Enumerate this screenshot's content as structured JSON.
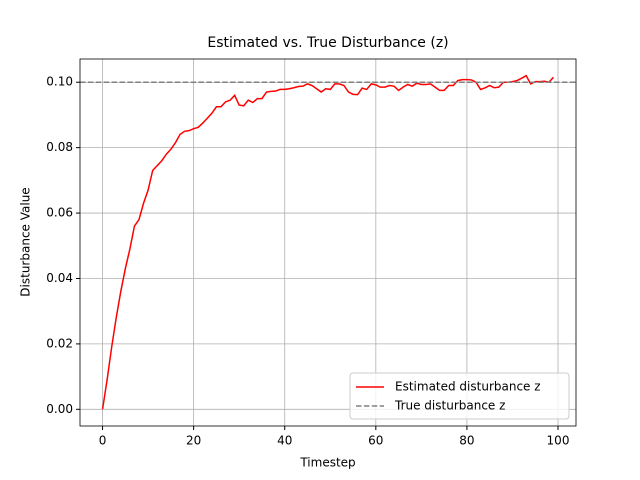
{
  "chart_data": {
    "type": "line",
    "title": "Estimated vs. True Disturbance (z)",
    "xlabel": "Timestep",
    "ylabel": "Disturbance Value",
    "x": [
      0,
      1,
      2,
      3,
      4,
      5,
      6,
      7,
      8,
      9,
      10,
      11,
      12,
      13,
      14,
      15,
      16,
      17,
      18,
      19,
      20,
      21,
      22,
      23,
      24,
      25,
      26,
      27,
      28,
      29,
      30,
      31,
      32,
      33,
      34,
      35,
      36,
      37,
      38,
      39,
      40,
      41,
      42,
      43,
      44,
      45,
      46,
      47,
      48,
      49,
      50,
      51,
      52,
      53,
      54,
      55,
      56,
      57,
      58,
      59,
      60,
      61,
      62,
      63,
      64,
      65,
      66,
      67,
      68,
      69,
      70,
      71,
      72,
      73,
      74,
      75,
      76,
      77,
      78,
      79,
      80,
      81,
      82,
      83,
      84,
      85,
      86,
      87,
      88,
      89,
      90,
      91,
      92,
      93,
      94,
      95,
      96,
      97,
      98,
      99
    ],
    "series": [
      {
        "name": "Estimated disturbance z",
        "color": "#ff0000",
        "style": "solid",
        "values": [
          0,
          0.009,
          0.019,
          0.028,
          0.036,
          0.043,
          0.049,
          0.056,
          0.058,
          0.063,
          0.067,
          0.073,
          0.0745,
          0.076,
          0.078,
          0.0795,
          0.0815,
          0.084,
          0.085,
          0.0852,
          0.0858,
          0.0862,
          0.0875,
          0.089,
          0.0905,
          0.0925,
          0.0925,
          0.094,
          0.0945,
          0.096,
          0.093,
          0.0928,
          0.0945,
          0.0938,
          0.095,
          0.095,
          0.097,
          0.0972,
          0.0973,
          0.0978,
          0.0978,
          0.098,
          0.0983,
          0.0987,
          0.0988,
          0.0995,
          0.099,
          0.098,
          0.097,
          0.098,
          0.0978,
          0.0995,
          0.0995,
          0.099,
          0.097,
          0.0963,
          0.0962,
          0.0982,
          0.0978,
          0.0995,
          0.0992,
          0.0985,
          0.0985,
          0.099,
          0.0988,
          0.0975,
          0.0985,
          0.0993,
          0.0988,
          0.0997,
          0.0993,
          0.0993,
          0.0995,
          0.0985,
          0.0975,
          0.0975,
          0.099,
          0.099,
          0.1005,
          0.1008,
          0.1008,
          0.1007,
          0.1,
          0.0978,
          0.0983,
          0.099,
          0.0983,
          0.0985,
          0.1,
          0.1,
          0.1002,
          0.1005,
          0.1012,
          0.102,
          0.0995,
          0.1002,
          0.1002,
          0.1003,
          0.1,
          0.1015
        ]
      },
      {
        "name": "True disturbance z",
        "color": "#808080",
        "style": "dashed",
        "hline": 0.1
      }
    ],
    "xlim": [
      -4.95,
      103.95
    ],
    "ylim": [
      -0.0051,
      0.1071
    ],
    "xticks": [
      0,
      20,
      40,
      60,
      80,
      100
    ],
    "yticks": [
      {
        "value": 0,
        "label": "0.00"
      },
      {
        "value": 0.02,
        "label": "0.02"
      },
      {
        "value": 0.04,
        "label": "0.04"
      },
      {
        "value": 0.06,
        "label": "0.06"
      },
      {
        "value": 0.08,
        "label": "0.08"
      },
      {
        "value": 0.1,
        "label": "0.10"
      }
    ],
    "grid": true,
    "legend": "lower right"
  }
}
